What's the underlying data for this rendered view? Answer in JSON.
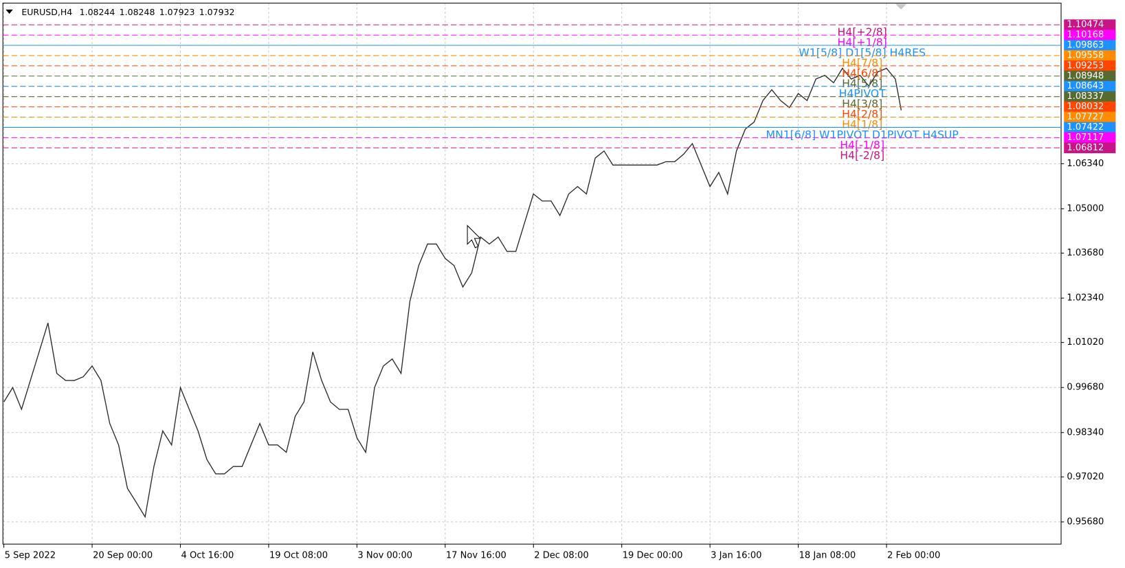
{
  "chart_data": {
    "type": "line",
    "title": "EURUSD,H4",
    "header_values": [
      1.08244,
      1.08248,
      1.07923,
      1.07932
    ],
    "x": [
      0,
      9,
      18,
      27,
      36,
      45,
      54,
      63,
      72,
      81,
      90,
      99,
      108,
      117,
      126,
      135,
      144,
      153,
      162,
      171,
      180,
      189,
      198,
      207,
      216,
      225,
      234,
      243,
      252,
      261,
      270,
      279,
      288,
      297,
      306,
      315,
      324,
      333,
      342,
      351,
      360,
      369,
      378,
      387,
      396,
      405,
      414,
      423,
      432,
      441,
      450,
      459,
      468,
      477,
      486,
      495,
      504,
      513,
      522,
      531,
      540,
      549,
      558,
      567,
      576,
      585,
      594,
      603,
      612,
      621,
      630,
      639,
      648,
      657,
      666,
      675,
      684,
      693,
      702,
      711,
      720,
      729,
      738,
      747,
      756,
      765,
      774,
      783,
      792,
      801,
      810,
      819,
      828,
      837,
      846,
      855,
      864,
      873,
      882,
      891,
      900,
      909,
      915
    ],
    "values": [
      0.9925,
      0.9968,
      0.9903,
      0.9989,
      1.0074,
      1.016,
      1.001,
      0.9989,
      0.9989,
      1.0,
      1.0032,
      0.9989,
      0.9861,
      0.9797,
      0.9668,
      0.9626,
      0.9583,
      0.9733,
      0.9839,
      0.9797,
      0.9968,
      0.9903,
      0.9839,
      0.9754,
      0.9711,
      0.9711,
      0.9733,
      0.9733,
      0.9797,
      0.9861,
      0.9797,
      0.9797,
      0.9775,
      0.9882,
      0.9925,
      1.0074,
      0.9989,
      0.9925,
      0.9903,
      0.9903,
      0.9818,
      0.9775,
      0.9968,
      1.0032,
      1.0053,
      1.001,
      1.0224,
      1.0331,
      1.0395,
      1.0395,
      1.0352,
      1.0331,
      1.0267,
      1.0309,
      1.0416,
      1.0395,
      1.0416,
      1.0373,
      1.0373,
      1.0459,
      1.0544,
      1.0523,
      1.0523,
      1.048,
      1.0544,
      1.0566,
      1.0544,
      1.0651,
      1.0672,
      1.063,
      1.063,
      1.063,
      1.063,
      1.063,
      1.063,
      1.064,
      1.064,
      1.0662,
      1.0694,
      1.063,
      1.0566,
      1.0608,
      1.0544,
      1.0672,
      1.0737,
      1.0758,
      1.0822,
      1.0854,
      1.0822,
      1.0801,
      1.0843,
      1.0822,
      1.0886,
      1.0897,
      1.0875,
      1.0918,
      1.0886,
      1.0897,
      1.0865,
      1.0907,
      1.0918,
      1.0886,
      1.0793
    ],
    "color": "#2b2b2b",
    "xlim": [
      -1,
      1078
    ],
    "ylim": [
      0.9502,
      1.1112
    ],
    "grid": true,
    "xticks": [
      {
        "value": 0,
        "label": "5 Sep 2022"
      },
      {
        "value": 90,
        "label": "20 Sep 00:00"
      },
      {
        "value": 180,
        "label": "4 Oct 16:00"
      },
      {
        "value": 270,
        "label": "19 Oct 08:00"
      },
      {
        "value": 360,
        "label": "3 Nov 00:00"
      },
      {
        "value": 450,
        "label": "17 Nov 16:00"
      },
      {
        "value": 540,
        "label": "2 Dec 08:00"
      },
      {
        "value": 630,
        "label": "19 Dec 00:00"
      },
      {
        "value": 720,
        "label": "3 Jan 16:00"
      },
      {
        "value": 810,
        "label": "18 Jan 08:00"
      },
      {
        "value": 900,
        "label": "2 Feb 00:00"
      }
    ],
    "yticks": [
      {
        "value": 1.0634,
        "label": "1.06340"
      },
      {
        "value": 1.05,
        "label": "1.05000"
      },
      {
        "value": 1.0368,
        "label": "1.03680"
      },
      {
        "value": 1.0234,
        "label": "1.02340"
      },
      {
        "value": 1.0102,
        "label": "1.01020"
      },
      {
        "value": 0.9968,
        "label": "0.99680"
      },
      {
        "value": 0.9834,
        "label": "0.98340"
      },
      {
        "value": 0.9702,
        "label": "0.97020"
      },
      {
        "value": 0.9568,
        "label": "0.95680"
      }
    ],
    "levels": [
      {
        "name": "H4[+2/8]",
        "value": 1.10474,
        "value_label": "1.10474",
        "color": "#c71585",
        "style": "dash"
      },
      {
        "name": "H4[+1/8]",
        "value": 1.10168,
        "value_label": "1.10168",
        "color": "#ff00ff",
        "style": "dash"
      },
      {
        "name": "W1[5/8] D1[5/8] H4RES",
        "value": 1.09863,
        "value_label": "1.09863",
        "color": "#1e90ff",
        "style": "solid"
      },
      {
        "name": "H4[7/8]",
        "value": 1.09558,
        "value_label": "1.09558",
        "color": "#ff8c00",
        "style": "dash"
      },
      {
        "name": "H4[6/8]",
        "value": 1.09253,
        "value_label": "1.09253",
        "color": "#ff4500",
        "style": "dash"
      },
      {
        "name": "H4[5/8]",
        "value": 1.08948,
        "value_label": "1.08948",
        "color": "#556b2f",
        "style": "dash"
      },
      {
        "name": "H4PIVOT",
        "value": 1.08643,
        "value_label": "1.08643",
        "color": "#1e90ff",
        "style": "dash"
      },
      {
        "name": "H4[3/8]",
        "value": 1.08337,
        "value_label": "1.08337",
        "color": "#556b2f",
        "style": "dash"
      },
      {
        "name": "H4[2/8]",
        "value": 1.08032,
        "value_label": "1.08032",
        "color": "#ff4500",
        "style": "dash"
      },
      {
        "name": "H4[1/8]",
        "value": 1.07727,
        "value_label": "1.07727",
        "color": "#ff8c00",
        "style": "dash"
      },
      {
        "name": "MN1[6/8] W1PIVOT D1PIVOT H4SUP",
        "value": 1.07422,
        "value_label": "1.07422",
        "color": "#1e90ff",
        "style": "solid"
      },
      {
        "name": "H4[-1/8]",
        "value": 1.07117,
        "value_label": "1.07117",
        "color": "#ff00ff",
        "style": "dash"
      },
      {
        "name": "H4[-2/8]",
        "value": 1.06812,
        "value_label": "1.06812",
        "color": "#c71585",
        "style": "dash"
      }
    ]
  }
}
